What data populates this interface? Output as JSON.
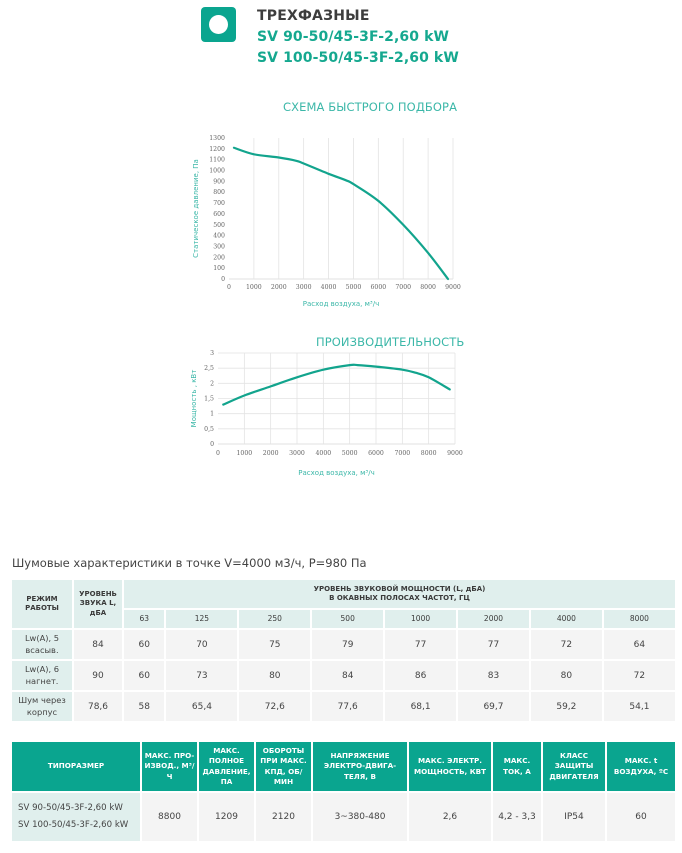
{
  "header": {
    "icon": "circle-in-square-icon",
    "title": "ТРЕХФАЗНЫЕ",
    "models": [
      "SV 90-50/45-3F-2,60 kW",
      "SV 100-50/45-3F-2,60 kW"
    ]
  },
  "colors": {
    "brand": "#0aa58f",
    "curve": "#12a48d",
    "light_cell": "#e0efed",
    "body_cell": "#f4f4f4"
  },
  "chart_data": [
    {
      "type": "line",
      "title": "СХЕМА БЫСТРОГО ПОДБОРА",
      "xlabel": "Расход воздуха, м³/ч",
      "ylabel": "Статическое давление, Па",
      "xlim": [
        0,
        9000
      ],
      "ylim": [
        0,
        1300
      ],
      "xticks": [
        0,
        1000,
        2000,
        3000,
        4000,
        5000,
        6000,
        7000,
        8000,
        9000
      ],
      "yticks": [
        0,
        100,
        200,
        300,
        400,
        500,
        600,
        700,
        800,
        900,
        1000,
        1100,
        1200,
        1300
      ],
      "grid": "vertical",
      "series": [
        {
          "name": "Статическое давление",
          "x": [
            200,
            1000,
            2000,
            2700,
            3000,
            4000,
            4700,
            5000,
            6000,
            7000,
            8000,
            8800
          ],
          "y": [
            1210,
            1150,
            1120,
            1090,
            1065,
            970,
            910,
            875,
            720,
            500,
            240,
            0
          ]
        }
      ]
    },
    {
      "type": "line",
      "title": "ПРОИЗВОДИТЕЛЬНОСТЬ",
      "xlabel": "Расход воздуха, м³/ч",
      "ylabel": "Мощность , кВт",
      "xlim": [
        0,
        9000
      ],
      "ylim": [
        0,
        3
      ],
      "xticks": [
        0,
        1000,
        2000,
        3000,
        4000,
        5000,
        6000,
        7000,
        8000,
        9000
      ],
      "yticks": [
        "0",
        "0,5",
        "1",
        "1,5",
        "2",
        "2,5",
        "3"
      ],
      "ytick_values": [
        0,
        0.5,
        1,
        1.5,
        2,
        2.5,
        3
      ],
      "grid": "both",
      "series": [
        {
          "name": "Мощность",
          "x": [
            200,
            1000,
            2000,
            3000,
            4000,
            5000,
            5300,
            6000,
            7000,
            7500,
            8000,
            8800
          ],
          "y": [
            1.3,
            1.6,
            1.9,
            2.2,
            2.45,
            2.6,
            2.6,
            2.55,
            2.45,
            2.35,
            2.2,
            1.8
          ]
        }
      ]
    }
  ],
  "noise": {
    "caption": "Шумовые характеристики в точке V=4000 м3/ч, P=980 Па",
    "headers": {
      "mode": "РЕЖИМ РАБОТЫ",
      "level": "УРОВЕНЬ ЗВУКА L, дБА",
      "power_line1": "УРОВЕНЬ ЗВУКОВОЙ МОЩНОСТИ (L, дБА)",
      "power_line2": "В ОКАВНЫХ ПОЛОСАХ ЧАСТОТ, ГЦ"
    },
    "frequencies": [
      "63",
      "125",
      "250",
      "500",
      "1000",
      "2000",
      "4000",
      "8000"
    ],
    "rows": [
      {
        "mode": "Lw(A), 5 всасыв.",
        "level": "84",
        "values": [
          "60",
          "70",
          "75",
          "79",
          "77",
          "77",
          "72",
          "64"
        ]
      },
      {
        "mode": "Lw(A), 6 нагнет.",
        "level": "90",
        "values": [
          "60",
          "73",
          "80",
          "84",
          "86",
          "83",
          "80",
          "72"
        ]
      },
      {
        "mode": "Шум через корпус",
        "level": "78,6",
        "values": [
          "58",
          "65,4",
          "72,6",
          "77,6",
          "68,1",
          "69,7",
          "59,2",
          "54,1"
        ]
      }
    ]
  },
  "specs": {
    "headers": [
      "ТИПОРАЗМЕР",
      "МАКС. ПРО-ИЗВОД., М³/Ч",
      "МАКС. ПОЛНОЕ ДАВЛЕНИЕ, ПА",
      "ОБОРОТЫ ПРИ МАКС. КПД, ОБ/МИН",
      "НАПРЯЖЕНИЕ ЭЛЕКТРО-ДВИГА-ТЕЛЯ, В",
      "МАКС. ЭЛЕКТР. МОЩНОСТЬ, КВТ",
      "МАКС. ТОК, А",
      "КЛАСС ЗАЩИТЫ ДВИГАТЕЛЯ",
      "МАКС. t ВОЗДУХА, ºC"
    ],
    "row": {
      "models": [
        "SV 90-50/45-3F-2,60 kW",
        "SV 100-50/45-3F-2,60 kW"
      ],
      "max_flow": "8800",
      "max_pressure": "1209",
      "rpm": "2120",
      "voltage": "3~380-480",
      "power": "2,6",
      "current": "4,2 - 3,3",
      "protection": "IP54",
      "max_temp": "60"
    }
  }
}
